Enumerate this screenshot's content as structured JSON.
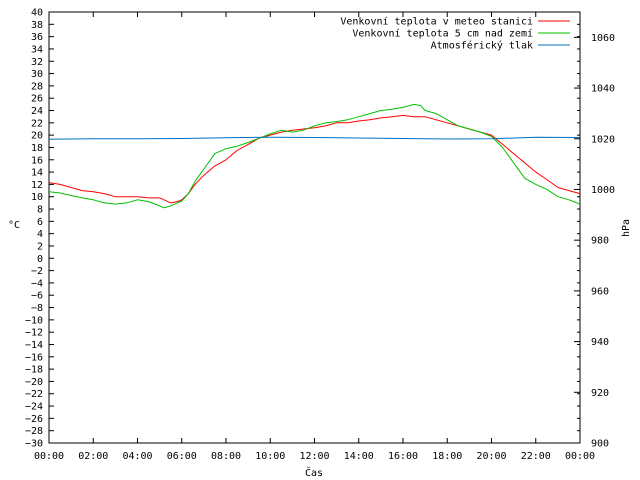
{
  "chart_data": {
    "type": "line",
    "xlabel": "Čas",
    "ylabel": "°C",
    "y2label": "hPa",
    "xlim": [
      0,
      24
    ],
    "ylim": [
      -30,
      40
    ],
    "y2lim": [
      900,
      1070
    ],
    "x_ticks": [
      0,
      2,
      4,
      6,
      8,
      10,
      12,
      14,
      16,
      18,
      20,
      22,
      24
    ],
    "x_tick_labels": [
      "00:00",
      "02:00",
      "04:00",
      "06:00",
      "08:00",
      "10:00",
      "12:00",
      "14:00",
      "16:00",
      "18:00",
      "20:00",
      "22:00",
      "00:00"
    ],
    "y_ticks": [
      40,
      38,
      36,
      34,
      32,
      30,
      28,
      26,
      24,
      22,
      20,
      18,
      16,
      14,
      12,
      10,
      8,
      6,
      4,
      2,
      0,
      -2,
      -4,
      -6,
      -8,
      -10,
      -12,
      -14,
      -16,
      -18,
      -20,
      -22,
      -24,
      -26,
      -28,
      -30
    ],
    "y2_ticks": [
      1060,
      1040,
      1020,
      1000,
      980,
      960,
      940,
      920,
      900
    ],
    "legend_position": "top-right",
    "series": [
      {
        "name": "Venkovní teplota v meteo stanici",
        "color": "#ff0000",
        "axis": "left",
        "x": [
          0,
          0.5,
          1,
          1.5,
          2,
          2.5,
          3,
          3.5,
          4,
          4.5,
          5,
          5.2,
          5.5,
          5.8,
          6,
          6.3,
          6.6,
          7,
          7.5,
          8,
          8.5,
          9,
          9.5,
          10,
          10.5,
          11,
          11.5,
          12,
          12.5,
          13,
          13.5,
          14,
          14.5,
          15,
          15.5,
          16,
          16.5,
          17,
          17.5,
          18,
          18.5,
          19,
          19.5,
          20,
          20.5,
          21,
          21.5,
          22,
          22.5,
          23,
          23.5,
          24
        ],
        "y": [
          12.3,
          12,
          11.5,
          11,
          10.8,
          10.5,
          10,
          10,
          10,
          9.8,
          9.8,
          9.5,
          9,
          9.2,
          9.5,
          10.5,
          12,
          13.5,
          15,
          16,
          17.5,
          18.5,
          19.5,
          20,
          20.5,
          20.8,
          21,
          21.2,
          21.5,
          22,
          22,
          22.3,
          22.5,
          22.8,
          23,
          23.2,
          23,
          23,
          22.5,
          22,
          21.5,
          21,
          20.5,
          20,
          18.5,
          17,
          15.5,
          14,
          12.8,
          11.5,
          11,
          10.5
        ]
      },
      {
        "name": "Venkovní teplota 5 cm nad zemí",
        "color": "#00c000",
        "axis": "left",
        "x": [
          0,
          0.5,
          1,
          1.5,
          2,
          2.5,
          3,
          3.5,
          4,
          4.5,
          5,
          5.2,
          5.5,
          5.8,
          6,
          6.3,
          6.6,
          7,
          7.5,
          8,
          8.5,
          9,
          9.5,
          10,
          10.5,
          11,
          11.5,
          12,
          12.5,
          13,
          13.5,
          14,
          14.5,
          15,
          15.5,
          16,
          16.5,
          16.8,
          17,
          17.5,
          18,
          18.5,
          19,
          19.5,
          20,
          20.5,
          21,
          21.5,
          22,
          22.5,
          23,
          23.5,
          24
        ],
        "y": [
          10.8,
          10.6,
          10.2,
          9.8,
          9.5,
          9,
          8.8,
          9,
          9.5,
          9.2,
          8.5,
          8.2,
          8.5,
          9,
          9.3,
          10.5,
          12.5,
          14.5,
          17,
          17.8,
          18.2,
          18.8,
          19.5,
          20.2,
          20.8,
          20.5,
          20.8,
          21.5,
          22,
          22.2,
          22.5,
          23,
          23.5,
          24,
          24.2,
          24.5,
          25,
          24.8,
          24,
          23.5,
          22.5,
          21.5,
          21,
          20.5,
          19.8,
          18,
          15.5,
          13,
          12,
          11.2,
          10,
          9.5,
          8.8
        ]
      },
      {
        "name": "Atmosférický tlak",
        "color": "#0070c0",
        "axis": "right",
        "x": [
          0,
          2,
          4,
          6,
          8,
          10,
          12,
          14,
          16,
          18,
          20,
          22,
          24
        ],
        "y": [
          1019.8,
          1020,
          1020,
          1020.1,
          1020.4,
          1020.6,
          1020.5,
          1020.3,
          1020.1,
          1019.9,
          1020,
          1020.6,
          1020.5
        ]
      }
    ]
  }
}
